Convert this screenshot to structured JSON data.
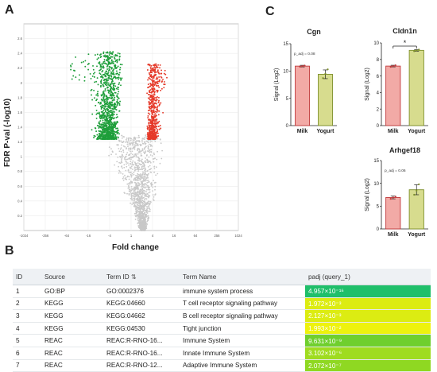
{
  "panels": {
    "a": "A",
    "b": "B",
    "c": "C"
  },
  "chart_data": [
    {
      "type": "scatter",
      "name": "volcano",
      "title": "",
      "xlabel": "Fold change",
      "ylabel": "FDR P-val (-log10)",
      "x_ticks": [
        "-1024",
        "-256",
        "-64",
        "-16",
        "-4",
        "1",
        "4",
        "16",
        "64",
        "256",
        "1024"
      ],
      "y_ticks": [
        "0.2",
        "0.4",
        "0.6",
        "0.8",
        "1",
        "1.2",
        "1.4",
        "1.6",
        "1.8",
        "2",
        "2.2",
        "2.4",
        "2.6"
      ],
      "colors": {
        "down": "#1e9e3a",
        "up": "#e53a2a",
        "ns": "#c8c8c8"
      }
    },
    {
      "type": "bar",
      "name": "Cgn",
      "title": "Cgn",
      "ylabel": "Signal (Log2)",
      "categories": [
        "Milk",
        "Yogurt"
      ],
      "values": [
        10.9,
        9.4
      ],
      "errors": [
        0.15,
        0.8
      ],
      "points": [
        [
          10.8,
          10.9,
          11.0
        ],
        [
          8.7,
          9.5,
          10.3
        ]
      ],
      "ylim": [
        0,
        15
      ],
      "y_ticks": [
        "0",
        "5",
        "10",
        "15"
      ],
      "annotation": "p_adj = 0.08"
    },
    {
      "type": "bar",
      "name": "Cldn1n",
      "title": "Cldn1n",
      "ylabel": "Signal (Log2)",
      "categories": [
        "Milk",
        "Yogurt"
      ],
      "values": [
        7.2,
        9.1
      ],
      "errors": [
        0.1,
        0.1
      ],
      "points": [
        [
          7.1,
          7.2,
          7.3
        ],
        [
          9.0,
          9.1,
          9.2
        ]
      ],
      "ylim": [
        0,
        10
      ],
      "y_ticks": [
        "0",
        "2",
        "4",
        "6",
        "8",
        "10"
      ],
      "annotation": "*"
    },
    {
      "type": "bar",
      "name": "Arhgef18",
      "title": "Arhgef18",
      "ylabel": "Signal (Log2)",
      "categories": [
        "Milk",
        "Yogurt"
      ],
      "values": [
        6.9,
        8.6
      ],
      "errors": [
        0.3,
        1.1
      ],
      "points": [
        [
          6.6,
          6.9,
          7.1
        ],
        [
          7.5,
          8.4,
          9.8
        ]
      ],
      "ylim": [
        0,
        15
      ],
      "y_ticks": [
        "0",
        "5",
        "10",
        "15"
      ],
      "annotation": "p_adj = 0.06"
    }
  ],
  "table": {
    "headers": [
      "ID",
      "Source",
      "Term ID",
      "Term Name",
      "padj (query_1)"
    ],
    "rows": [
      {
        "id": "1",
        "source": "GO:BP",
        "term_id": "GO:0002376",
        "term_name": "immune system process",
        "pval": "4.957×10⁻¹⁶",
        "color": "#1fbf6a"
      },
      {
        "id": "2",
        "source": "KEGG",
        "term_id": "KEGG:04660",
        "term_name": "T cell receptor signaling pathway",
        "pval": "1.972×10⁻³",
        "color": "#dcec12"
      },
      {
        "id": "3",
        "source": "KEGG",
        "term_id": "KEGG:04662",
        "term_name": "B cell receptor signaling pathway",
        "pval": "2.127×10⁻³",
        "color": "#dcec12"
      },
      {
        "id": "4",
        "source": "KEGG",
        "term_id": "KEGG:04530",
        "term_name": "Tight junction",
        "pval": "1.993×10⁻²",
        "color": "#eef20e"
      },
      {
        "id": "5",
        "source": "REAC",
        "term_id": "REAC:R-RNO-16...",
        "term_name": "Immune System",
        "pval": "9.631×10⁻⁹",
        "color": "#6fcf2e"
      },
      {
        "id": "6",
        "source": "REAC",
        "term_id": "REAC:R-RNO-16...",
        "term_name": "Innate Immune System",
        "pval": "3.102×10⁻⁶",
        "color": "#9fdc20"
      },
      {
        "id": "7",
        "source": "REAC",
        "term_id": "REAC:R-RNO-12...",
        "term_name": "Adaptive Immune System",
        "pval": "2.072×10⁻⁷",
        "color": "#8fd822"
      }
    ]
  }
}
